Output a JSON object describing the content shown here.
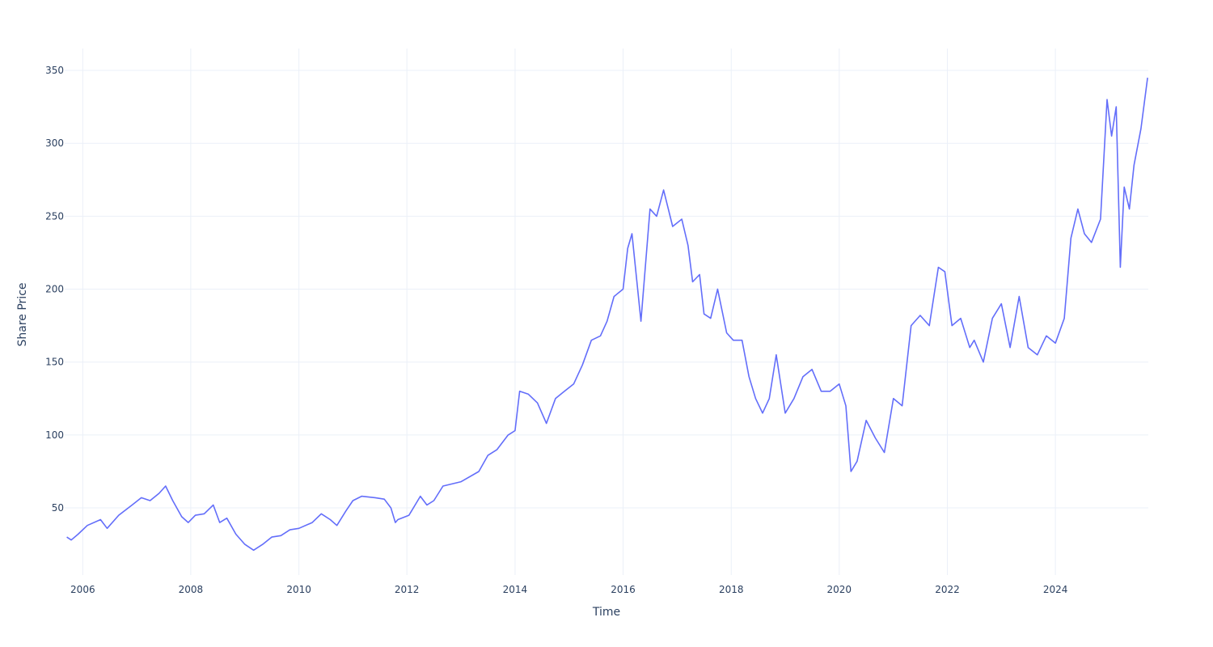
{
  "chart_data": {
    "type": "line",
    "xlabel": "Time",
    "ylabel": "Share Price",
    "xlim": [
      "2005-09-01",
      "2025-09-20"
    ],
    "ylim": [
      4,
      365
    ],
    "xticks": [
      {
        "date": "2006-01-01",
        "label": "2006"
      },
      {
        "date": "2008-01-01",
        "label": "2008"
      },
      {
        "date": "2010-01-01",
        "label": "2010"
      },
      {
        "date": "2012-01-01",
        "label": "2012"
      },
      {
        "date": "2014-01-01",
        "label": "2014"
      },
      {
        "date": "2016-01-01",
        "label": "2016"
      },
      {
        "date": "2018-01-01",
        "label": "2018"
      },
      {
        "date": "2020-01-01",
        "label": "2020"
      },
      {
        "date": "2022-01-01",
        "label": "2022"
      },
      {
        "date": "2024-01-01",
        "label": "2024"
      }
    ],
    "yticks": [
      50,
      100,
      150,
      200,
      250,
      300,
      350
    ],
    "grid": true,
    "line_color": "#636efa",
    "series": [
      {
        "x": [
          "2005-09-15",
          "2005-10-15",
          "2005-12-01",
          "2006-02-01",
          "2006-05-01",
          "2006-06-15",
          "2006-09-01",
          "2006-12-01",
          "2007-02-01",
          "2007-04-01",
          "2007-06-01",
          "2007-07-15",
          "2007-09-01",
          "2007-11-01",
          "2007-12-15",
          "2008-02-01",
          "2008-04-01",
          "2008-06-01",
          "2008-07-15",
          "2008-09-01",
          "2008-11-01",
          "2009-01-01",
          "2009-03-01",
          "2009-05-01",
          "2009-07-01",
          "2009-09-01",
          "2009-11-01",
          "2010-01-01",
          "2010-04-01",
          "2010-06-01",
          "2010-08-01",
          "2010-09-15",
          "2010-11-15",
          "2011-01-01",
          "2011-03-01",
          "2011-06-01",
          "2011-08-01",
          "2011-09-15",
          "2011-10-15",
          "2011-11-01",
          "2012-01-15",
          "2012-04-01",
          "2012-05-15",
          "2012-07-01",
          "2012-09-01",
          "2013-01-01",
          "2013-05-01",
          "2013-07-01",
          "2013-09-01",
          "2013-11-15",
          "2014-01-01",
          "2014-02-01",
          "2014-04-01",
          "2014-06-01",
          "2014-08-01",
          "2014-10-01",
          "2014-12-01",
          "2015-02-01",
          "2015-04-01",
          "2015-06-01",
          "2015-08-01",
          "2015-09-15",
          "2015-11-01",
          "2016-01-01",
          "2016-02-01",
          "2016-03-01",
          "2016-05-01",
          "2016-07-01",
          "2016-08-15",
          "2016-10-01",
          "2016-12-01",
          "2017-02-01",
          "2017-03-15",
          "2017-04-15",
          "2017-06-01",
          "2017-07-01",
          "2017-08-15",
          "2017-10-01",
          "2017-12-01",
          "2018-01-15",
          "2018-03-15",
          "2018-05-01",
          "2018-06-15",
          "2018-08-01",
          "2018-09-15",
          "2018-11-01",
          "2019-01-01",
          "2019-03-01",
          "2019-05-01",
          "2019-07-01",
          "2019-09-01",
          "2019-11-01",
          "2020-01-01",
          "2020-02-15",
          "2020-03-20",
          "2020-05-01",
          "2020-07-01",
          "2020-09-01",
          "2020-11-01",
          "2021-01-01",
          "2021-03-01",
          "2021-05-01",
          "2021-07-01",
          "2021-09-01",
          "2021-11-01",
          "2021-12-15",
          "2022-02-01",
          "2022-04-01",
          "2022-06-01",
          "2022-07-01",
          "2022-09-01",
          "2022-11-01",
          "2023-01-01",
          "2023-03-01",
          "2023-05-01",
          "2023-07-01",
          "2023-09-01",
          "2023-11-01",
          "2024-01-01",
          "2024-03-01",
          "2024-04-15",
          "2024-06-01",
          "2024-07-15",
          "2024-09-01",
          "2024-11-01",
          "2024-12-15",
          "2025-01-15",
          "2025-02-15",
          "2025-03-15",
          "2025-04-10",
          "2025-05-15",
          "2025-06-15",
          "2025-08-01",
          "2025-09-15"
        ],
        "y": [
          30,
          28,
          32,
          38,
          42,
          36,
          45,
          52,
          57,
          55,
          60,
          65,
          55,
          44,
          40,
          45,
          46,
          52,
          40,
          43,
          32,
          25,
          21,
          25,
          30,
          31,
          35,
          36,
          40,
          46,
          42,
          38,
          48,
          55,
          58,
          57,
          56,
          50,
          40,
          42,
          45,
          58,
          52,
          55,
          65,
          68,
          75,
          86,
          90,
          100,
          103,
          130,
          128,
          122,
          108,
          125,
          130,
          135,
          148,
          165,
          168,
          178,
          195,
          200,
          228,
          238,
          178,
          255,
          250,
          268,
          243,
          248,
          230,
          205,
          210,
          183,
          180,
          200,
          170,
          165,
          165,
          140,
          125,
          115,
          125,
          155,
          115,
          125,
          140,
          145,
          130,
          130,
          135,
          120,
          75,
          82,
          110,
          98,
          88,
          125,
          120,
          175,
          182,
          175,
          215,
          212,
          175,
          180,
          160,
          165,
          150,
          180,
          190,
          160,
          195,
          160,
          155,
          168,
          163,
          180,
          235,
          255,
          238,
          232,
          248,
          330,
          305,
          325,
          215,
          270,
          255,
          285,
          310,
          345
        ]
      }
    ]
  }
}
